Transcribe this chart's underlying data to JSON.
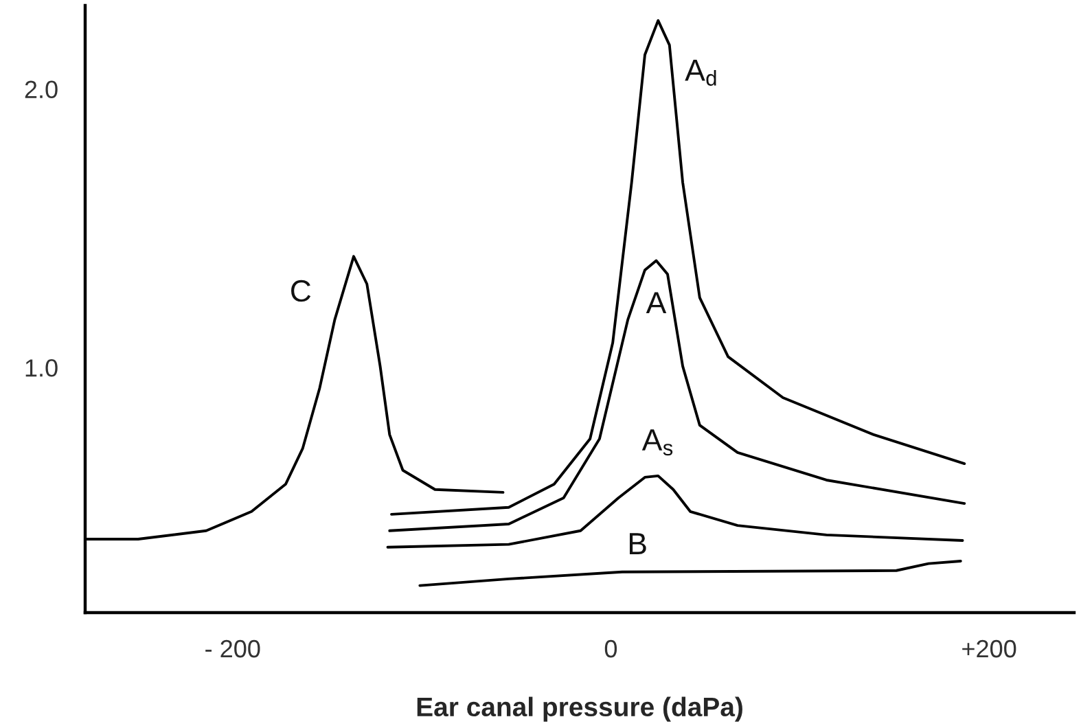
{
  "chart_data": {
    "type": "line",
    "xlabel": "Ear canal pressure (daPa)",
    "xlim": [
      -278,
      245
    ],
    "ylim": [
      0.12,
      2.3
    ],
    "xticks": [
      {
        "value": -200,
        "label": "- 200"
      },
      0,
      {
        "value": 200,
        "label": "+200"
      }
    ],
    "yticks": [
      {
        "value": 1,
        "label": "1.0"
      },
      {
        "value": 2,
        "label": "2.0"
      }
    ],
    "grid": false,
    "legend": false,
    "marker": "none",
    "line_style": "solid",
    "series": [
      {
        "name": "C",
        "color": "#000000",
        "x": [
          -277,
          -250,
          -214,
          -190,
          -172,
          -163,
          -154,
          -146,
          -136,
          -129,
          -122,
          -117,
          -110,
          -93,
          -57
        ],
        "values": [
          0.384,
          0.384,
          0.414,
          0.483,
          0.581,
          0.709,
          0.926,
          1.172,
          1.399,
          1.3,
          1.005,
          0.759,
          0.631,
          0.562,
          0.552
        ]
      },
      {
        "name": "A$_{d}$",
        "color": "#000000",
        "x": [
          -116,
          -54,
          -30,
          -11,
          1,
          11,
          18,
          25,
          31,
          38,
          47,
          62,
          91,
          139,
          187
        ],
        "values": [
          0.473,
          0.498,
          0.581,
          0.744,
          1.089,
          1.665,
          2.123,
          2.246,
          2.158,
          1.665,
          1.251,
          1.039,
          0.892,
          0.759,
          0.655
        ]
      },
      {
        "name": "A",
        "color": "#000000",
        "x": [
          -117,
          -54,
          -25,
          -6,
          9,
          18,
          24,
          30,
          38,
          47,
          67,
          114,
          187
        ],
        "values": [
          0.414,
          0.438,
          0.532,
          0.744,
          1.172,
          1.35,
          1.384,
          1.335,
          1.005,
          0.793,
          0.695,
          0.596,
          0.512
        ]
      },
      {
        "name": "A$_{s}$",
        "color": "#000000",
        "x": [
          -118,
          -54,
          -16,
          4,
          18,
          25,
          33,
          42,
          67,
          114,
          186
        ],
        "values": [
          0.355,
          0.365,
          0.414,
          0.532,
          0.606,
          0.611,
          0.562,
          0.483,
          0.433,
          0.399,
          0.379
        ]
      },
      {
        "name": "B",
        "color": "#000000",
        "x": [
          -101,
          -54,
          6,
          151,
          168,
          185
        ],
        "values": [
          0.217,
          0.241,
          0.266,
          0.271,
          0.296,
          0.305
        ]
      }
    ]
  }
}
